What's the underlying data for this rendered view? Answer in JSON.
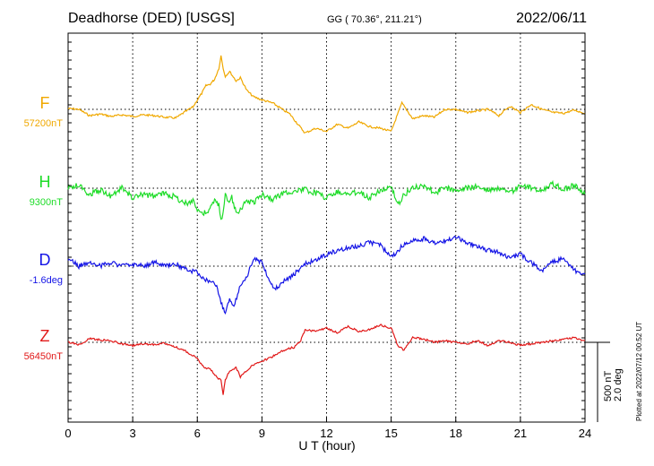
{
  "chart_data": {
    "type": "line",
    "title": "Deadhorse (DED)  [USGS]",
    "subtitle": "GG ( 70.36°, 211.21°)",
    "date": "2022/06/11",
    "xlabel": "U T (hour)",
    "xlim": [
      0,
      24
    ],
    "x_ticks": [
      "0",
      "3",
      "6",
      "9",
      "12",
      "15",
      "18",
      "21",
      "24"
    ],
    "grid": true,
    "scale_label_1": "500 nT",
    "scale_label_2": "2.0 deg",
    "footer": "Plotted at 2022/07/12 00:52 UT",
    "series": [
      {
        "name": "F",
        "baseline": "57200nT",
        "color": "#f0a800",
        "x": [
          0,
          0.5,
          1,
          1.5,
          2,
          2.5,
          3,
          3.5,
          4,
          4.5,
          5,
          5.5,
          5.8,
          6,
          6.2,
          6.4,
          6.6,
          6.8,
          7,
          7.1,
          7.2,
          7.3,
          7.5,
          7.8,
          8,
          8.3,
          8.6,
          9,
          9.5,
          10,
          10.3,
          10.7,
          11,
          11.5,
          12,
          12.5,
          13,
          13.5,
          14,
          14.5,
          15,
          15.5,
          16,
          16.5,
          17,
          17.5,
          18,
          18.5,
          19,
          19.5,
          20,
          20.5,
          21,
          21.5,
          22,
          22.5,
          23,
          23.5,
          24
        ],
        "y": [
          5,
          0,
          -40,
          -30,
          -45,
          -35,
          -45,
          -35,
          -40,
          -50,
          -55,
          -10,
          15,
          60,
          100,
          150,
          160,
          190,
          260,
          340,
          260,
          210,
          240,
          180,
          200,
          120,
          80,
          60,
          40,
          -5,
          -30,
          -100,
          -150,
          -120,
          -140,
          -95,
          -120,
          -80,
          -110,
          -120,
          -140,
          40,
          -60,
          -40,
          -50,
          0,
          0,
          -20,
          -10,
          0,
          -40,
          20,
          -20,
          30,
          0,
          -20,
          -25,
          -5,
          -25
        ]
      },
      {
        "name": "H",
        "baseline": "9300nT",
        "color": "#1edc28",
        "x": [
          0,
          0.5,
          1,
          1.5,
          2,
          2.5,
          3,
          3.5,
          4,
          4.5,
          5,
          5.5,
          5.8,
          6,
          6.3,
          6.5,
          6.8,
          7,
          7.1,
          7.2,
          7.3,
          7.4,
          7.6,
          7.8,
          8,
          8.3,
          8.6,
          9,
          9.5,
          10,
          10.5,
          11,
          11.5,
          12,
          12.5,
          13,
          13.5,
          14,
          14.5,
          15,
          15.2,
          15.4,
          15.6,
          16,
          16.5,
          17,
          17.5,
          18,
          18.5,
          19,
          19.5,
          20,
          20.5,
          21,
          21.5,
          22,
          22.5,
          23,
          23.5,
          24
        ],
        "y": [
          0,
          20,
          -40,
          -10,
          -50,
          0,
          -60,
          -40,
          -50,
          -30,
          -60,
          -100,
          -70,
          -140,
          -160,
          -150,
          -80,
          -110,
          -200,
          -160,
          -40,
          -80,
          -60,
          -160,
          -130,
          -80,
          -90,
          -40,
          -70,
          -30,
          -20,
          -10,
          -30,
          -60,
          -20,
          -40,
          -20,
          -60,
          -10,
          0,
          -60,
          -100,
          -40,
          0,
          20,
          -30,
          0,
          -10,
          0,
          10,
          -10,
          0,
          -30,
          20,
          0,
          -10,
          30,
          -10,
          20,
          -40
        ]
      },
      {
        "name": "D",
        "baseline": "-1.6deg",
        "color": "#1414e6",
        "x": [
          0,
          0.5,
          1,
          1.5,
          2,
          2.5,
          3,
          3.5,
          4,
          4.5,
          5,
          5.5,
          6,
          6.3,
          6.6,
          6.9,
          7.1,
          7.3,
          7.5,
          7.7,
          8,
          8.3,
          8.6,
          9,
          9.3,
          9.6,
          10,
          10.5,
          11,
          11.5,
          12,
          12.5,
          13,
          13.5,
          14,
          14.5,
          15,
          15.5,
          16,
          16.5,
          17,
          17.5,
          18,
          18.5,
          19,
          19.5,
          20,
          20.5,
          21,
          21.5,
          22,
          22.5,
          23,
          23.5,
          24
        ],
        "y": [
          0.2,
          0,
          0.1,
          0,
          0.1,
          0,
          0.05,
          0,
          0.1,
          0,
          0.05,
          -0.1,
          -0.15,
          -0.3,
          -0.4,
          -0.5,
          -0.9,
          -1.2,
          -0.8,
          -1.0,
          -0.5,
          -0.3,
          0.2,
          0.1,
          -0.3,
          -0.6,
          -0.4,
          -0.2,
          0.05,
          0.15,
          0.3,
          0.4,
          0.45,
          0.5,
          0.6,
          0.55,
          0.2,
          0.5,
          0.65,
          0.7,
          0.6,
          0.65,
          0.75,
          0.6,
          0.5,
          0.4,
          0.35,
          0.2,
          0.3,
          0.1,
          -0.1,
          0.1,
          0.2,
          -0.1,
          -0.2
        ]
      },
      {
        "name": "Z",
        "baseline": "56450nT",
        "color": "#e11919",
        "x": [
          0,
          0.5,
          1,
          1.5,
          2,
          2.5,
          3,
          3.5,
          4,
          4.5,
          5,
          5.5,
          6,
          6.3,
          6.6,
          6.9,
          7.1,
          7.2,
          7.3,
          7.5,
          7.8,
          8,
          8.5,
          9,
          9.5,
          10,
          10.5,
          10.8,
          11,
          11.5,
          12,
          12.5,
          13,
          13.5,
          14,
          14.5,
          15,
          15.3,
          15.6,
          16,
          16.5,
          17,
          17.5,
          18,
          18.5,
          19,
          19.5,
          20,
          20.5,
          21,
          21.5,
          22,
          22.5,
          23,
          23.5,
          24
        ],
        "y": [
          0,
          -15,
          25,
          15,
          10,
          -10,
          -20,
          -10,
          -15,
          -5,
          -30,
          -60,
          -100,
          -160,
          -170,
          -220,
          -240,
          -330,
          -240,
          -180,
          -160,
          -220,
          -150,
          -120,
          -90,
          -50,
          -30,
          10,
          80,
          70,
          90,
          60,
          100,
          70,
          80,
          110,
          90,
          -20,
          -50,
          30,
          20,
          0,
          10,
          0,
          -10,
          10,
          -20,
          10,
          0,
          -20,
          -10,
          0,
          10,
          20,
          30,
          10
        ]
      }
    ]
  }
}
